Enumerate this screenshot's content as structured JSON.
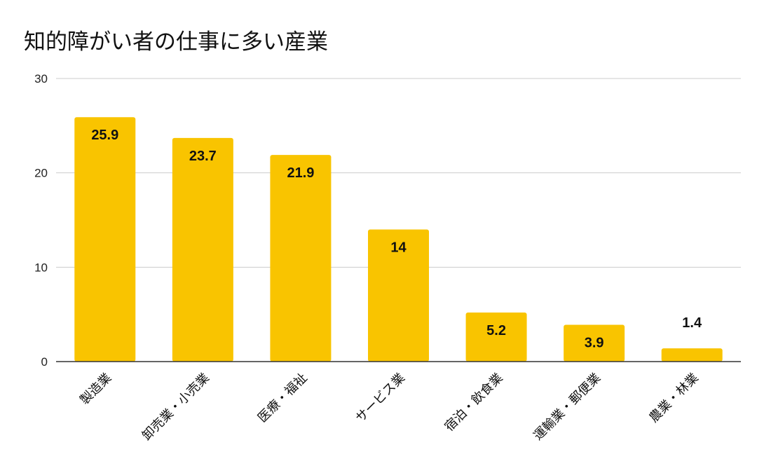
{
  "chart_data": {
    "type": "bar",
    "title": "知的障がい者の仕事に多い産業",
    "categories": [
      "製造業",
      "卸売業・小売業",
      "医療・福祉",
      "サービス業",
      "宿泊・飲食業",
      "運輸業・郵便業",
      "農業・林業"
    ],
    "values": [
      25.9,
      23.7,
      21.9,
      14,
      5.2,
      3.9,
      1.4
    ],
    "value_labels": [
      "25.9",
      "23.7",
      "21.9",
      "14",
      "5.2",
      "3.9",
      "1.4"
    ],
    "ylim": [
      0,
      30
    ],
    "yticks": [
      0,
      10,
      20,
      30
    ],
    "ytick_labels": [
      "0",
      "10",
      "20",
      "30"
    ],
    "xlabel": "",
    "ylabel": "",
    "grid": true,
    "bar_color": "#F9C400",
    "grid_color": "#CCCCCC",
    "axis_color": "#333333"
  }
}
